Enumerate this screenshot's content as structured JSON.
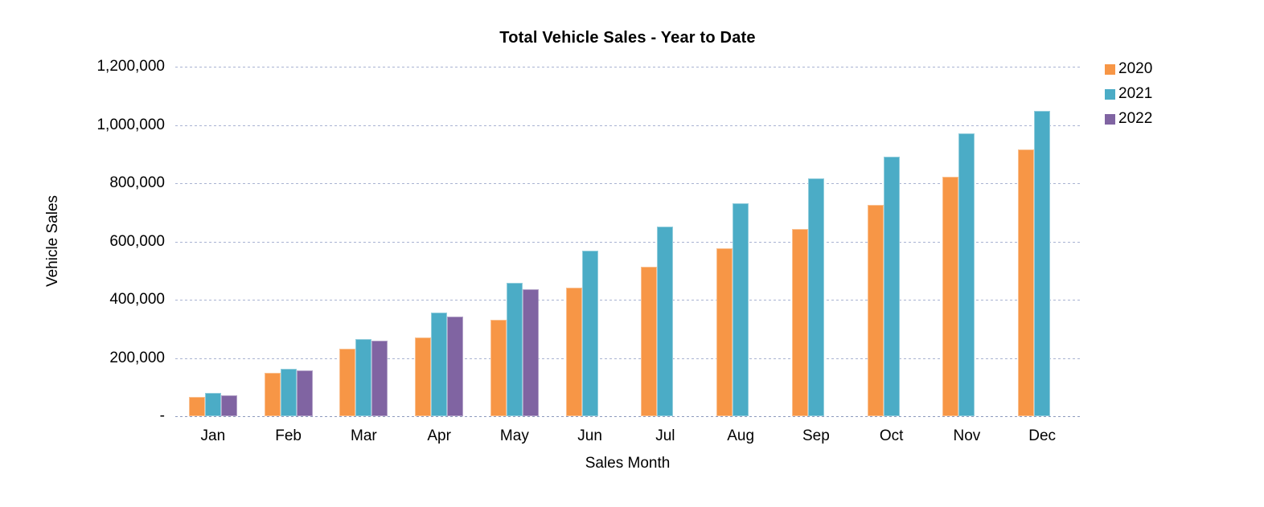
{
  "chart_data": {
    "type": "bar",
    "title": "Total Vehicle Sales - Year to Date",
    "xlabel": "Sales Month",
    "ylabel": "Vehicle Sales",
    "categories": [
      "Jan",
      "Feb",
      "Mar",
      "Apr",
      "May",
      "Jun",
      "Jul",
      "Aug",
      "Sep",
      "Oct",
      "Nov",
      "Dec"
    ],
    "series": [
      {
        "name": "2020",
        "color": "#F79646",
        "border_color": "#FAC090",
        "values": [
          67000,
          149000,
          233000,
          270000,
          331000,
          441000,
          513000,
          577000,
          642000,
          725000,
          822000,
          917000
        ]
      },
      {
        "name": "2021",
        "color": "#4BACC6",
        "border_color": "#92CDDC",
        "values": [
          80000,
          163000,
          264000,
          355000,
          457000,
          568000,
          651000,
          732000,
          817000,
          890000,
          971000,
          1049000
        ]
      },
      {
        "name": "2022",
        "color": "#8064A2",
        "border_color": "#B2A1C7",
        "values": [
          73000,
          158000,
          260000,
          341000,
          437000,
          null,
          null,
          null,
          null,
          null,
          null,
          null
        ]
      }
    ],
    "ylim": [
      0,
      1200000
    ],
    "yticks": [
      {
        "value": 0,
        "label": "-"
      },
      {
        "value": 200000,
        "label": "200,000"
      },
      {
        "value": 400000,
        "label": "400,000"
      },
      {
        "value": 600000,
        "label": "600,000"
      },
      {
        "value": 800000,
        "label": "800,000"
      },
      {
        "value": 1000000,
        "label": "1,000,000"
      },
      {
        "value": 1200000,
        "label": "1,200,000"
      }
    ],
    "grid": "horizontal-dashed",
    "legend_position": "top-right",
    "colors": {
      "gridline": "#A9B3D2",
      "axisline": "#8D99BD",
      "text": "#000000"
    }
  }
}
